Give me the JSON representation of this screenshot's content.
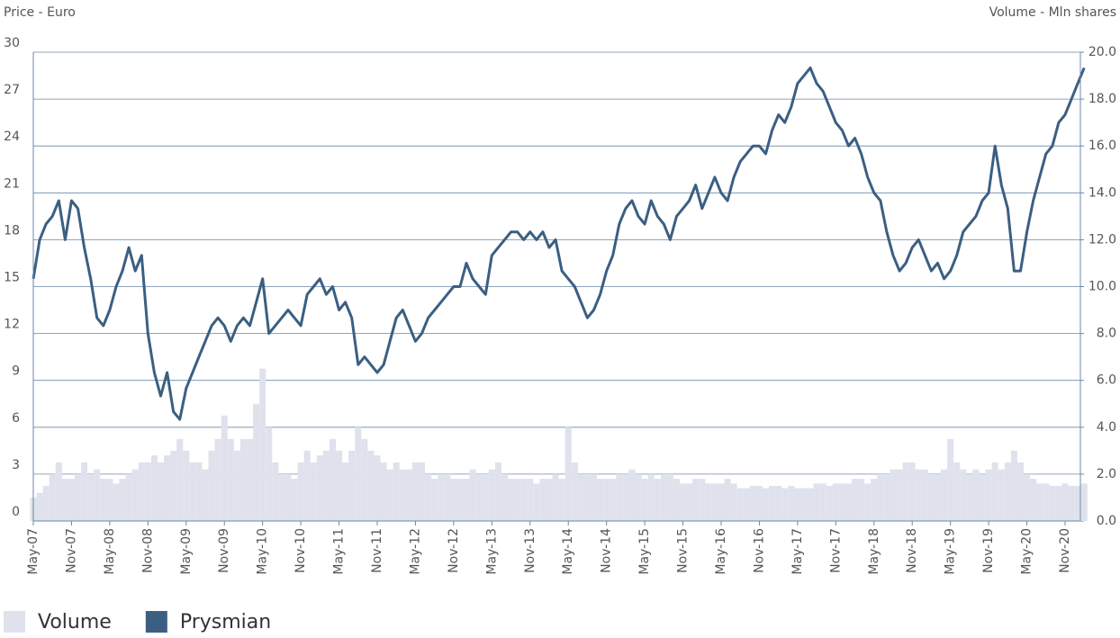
{
  "chart_data": {
    "type": "line",
    "y_label": "Price - Euro",
    "y2_label": "Volume - Mln shares",
    "categories": [
      "May-07",
      null,
      null,
      null,
      null,
      null,
      "Nov-07",
      null,
      null,
      null,
      null,
      null,
      "May-08",
      null,
      null,
      null,
      null,
      null,
      "Nov-08",
      null,
      null,
      null,
      null,
      null,
      "May-09",
      null,
      null,
      null,
      null,
      null,
      "Nov-09",
      null,
      null,
      null,
      null,
      null,
      "May-10",
      null,
      null,
      null,
      null,
      null,
      "Nov-10",
      null,
      null,
      null,
      null,
      null,
      "May-11",
      null,
      null,
      null,
      null,
      null,
      "Nov-11",
      null,
      null,
      null,
      null,
      null,
      "May-12",
      null,
      null,
      null,
      null,
      null,
      "Nov-12",
      null,
      null,
      null,
      null,
      null,
      "May-13",
      null,
      null,
      null,
      null,
      null,
      "Nov-13",
      null,
      null,
      null,
      null,
      null,
      "May-14",
      null,
      null,
      null,
      null,
      null,
      "Nov-14",
      null,
      null,
      null,
      null,
      null,
      "May-15",
      null,
      null,
      null,
      null,
      null,
      "Nov-15",
      null,
      null,
      null,
      null,
      null,
      "May-16",
      null,
      null,
      null,
      null,
      null,
      "Nov-16",
      null,
      null,
      null,
      null,
      null,
      "May-17",
      null,
      null,
      null,
      null,
      null,
      "Nov-17",
      null,
      null,
      null,
      null,
      null,
      "May-18",
      null,
      null,
      null,
      null,
      null,
      "Nov-18",
      null,
      null,
      null,
      null,
      null,
      "May-19",
      null,
      null,
      null,
      null,
      null,
      "Nov-19",
      null,
      null,
      null,
      null,
      null,
      "May-20",
      null,
      null,
      null,
      null,
      null,
      "Nov-20",
      null,
      null,
      null
    ],
    "series": [
      {
        "name": "Volume",
        "type": "bar",
        "axis": "y2",
        "color": "#dfe2ec",
        "values": [
          1.0,
          1.2,
          1.5,
          2.0,
          2.5,
          1.8,
          1.8,
          2.0,
          2.5,
          2.0,
          2.2,
          1.8,
          1.8,
          1.6,
          1.8,
          2.0,
          2.2,
          2.5,
          2.5,
          2.8,
          2.5,
          2.8,
          3.0,
          3.5,
          3.0,
          2.5,
          2.5,
          2.2,
          3.0,
          3.5,
          4.5,
          3.5,
          3.0,
          3.5,
          3.5,
          5.0,
          6.5,
          4.0,
          2.5,
          2.0,
          2.0,
          1.8,
          2.5,
          3.0,
          2.5,
          2.8,
          3.0,
          3.5,
          3.0,
          2.5,
          3.0,
          4.0,
          3.5,
          3.0,
          2.8,
          2.5,
          2.2,
          2.5,
          2.2,
          2.2,
          2.5,
          2.5,
          2.0,
          1.8,
          2.0,
          2.0,
          1.8,
          1.8,
          1.8,
          2.2,
          2.0,
          2.0,
          2.2,
          2.5,
          2.0,
          1.8,
          1.8,
          1.8,
          1.8,
          1.6,
          1.8,
          1.8,
          2.0,
          1.8,
          4.0,
          2.5,
          2.0,
          2.0,
          2.0,
          1.8,
          1.8,
          1.8,
          2.0,
          2.0,
          2.2,
          2.0,
          1.8,
          2.0,
          1.8,
          2.0,
          2.0,
          1.8,
          1.6,
          1.6,
          1.8,
          1.8,
          1.6,
          1.6,
          1.6,
          1.8,
          1.6,
          1.4,
          1.4,
          1.5,
          1.5,
          1.4,
          1.5,
          1.5,
          1.4,
          1.5,
          1.4,
          1.4,
          1.4,
          1.6,
          1.6,
          1.5,
          1.6,
          1.6,
          1.6,
          1.8,
          1.8,
          1.6,
          1.8,
          2.0,
          2.0,
          2.2,
          2.2,
          2.5,
          2.5,
          2.2,
          2.2,
          2.0,
          2.0,
          2.2,
          3.5,
          2.5,
          2.2,
          2.0,
          2.2,
          2.0,
          2.2,
          2.5,
          2.2,
          2.5,
          3.0,
          2.5,
          2.0,
          1.8,
          1.6,
          1.6,
          1.5,
          1.5,
          1.6,
          1.5,
          1.5,
          1.6
        ]
      },
      {
        "name": "Prysmian",
        "type": "line",
        "color": "#3b5f82",
        "values": [
          15.5,
          18,
          19,
          19.5,
          20.5,
          18,
          20.5,
          20,
          17.5,
          15.5,
          13,
          12.5,
          13.5,
          15,
          16,
          17.5,
          16,
          17,
          12,
          9.5,
          8,
          9.5,
          7,
          6.5,
          8.5,
          9.5,
          10.5,
          11.5,
          12.5,
          13,
          12.5,
          11.5,
          12.5,
          13,
          12.5,
          14,
          15.5,
          12,
          12.5,
          13,
          13.5,
          13,
          12.5,
          14.5,
          15,
          15.5,
          14.5,
          15,
          13.5,
          14,
          13,
          10,
          10.5,
          10,
          9.5,
          10,
          11.5,
          13,
          13.5,
          12.5,
          11.5,
          12,
          13,
          13.5,
          14,
          14.5,
          15,
          15,
          16.5,
          15.5,
          15,
          14.5,
          17,
          17.5,
          18,
          18.5,
          18.5,
          18,
          18.5,
          18,
          18.5,
          17.5,
          18,
          16,
          15.5,
          15,
          14,
          13,
          13.5,
          14.5,
          16,
          17,
          19,
          20,
          20.5,
          19.5,
          19,
          20.5,
          19.5,
          19,
          18,
          19.5,
          20,
          20.5,
          21.5,
          20,
          21,
          22,
          21,
          20.5,
          22,
          23,
          23.5,
          24,
          24,
          23.5,
          25,
          26,
          25.5,
          26.5,
          28,
          28.5,
          29,
          28,
          27.5,
          26.5,
          25.5,
          25,
          24,
          24.5,
          23.5,
          22,
          21,
          20.5,
          18.5,
          17,
          16,
          16.5,
          17.5,
          18,
          17,
          16,
          16.5,
          15.5,
          16,
          17,
          18.5,
          19,
          19.5,
          20.5,
          21,
          24,
          21.5,
          20,
          16,
          16,
          18.5,
          20.5,
          22,
          23.5,
          24,
          25.5,
          26,
          27,
          28,
          29
        ]
      }
    ],
    "ylim": [
      0,
      30
    ],
    "yticks": [
      0,
      3,
      6,
      9,
      12,
      15,
      18,
      21,
      24,
      27,
      30
    ],
    "y2lim": [
      0,
      20
    ],
    "y2ticks": [
      {
        "value": 0,
        "label": "0.0"
      },
      {
        "value": 2,
        "label": "2.0"
      },
      {
        "value": 4,
        "label": "4.0"
      },
      {
        "value": 6,
        "label": "6.0"
      },
      {
        "value": 8,
        "label": "8.0"
      },
      {
        "value": 10,
        "label": "10.0"
      },
      {
        "value": 12,
        "label": "12.0"
      },
      {
        "value": 14,
        "label": "14.0"
      },
      {
        "value": 16,
        "label": "16.0"
      },
      {
        "value": 18,
        "label": "18.0"
      },
      {
        "value": 20,
        "label": "20.0"
      }
    ],
    "grid": true,
    "legend": "bottom-left"
  }
}
